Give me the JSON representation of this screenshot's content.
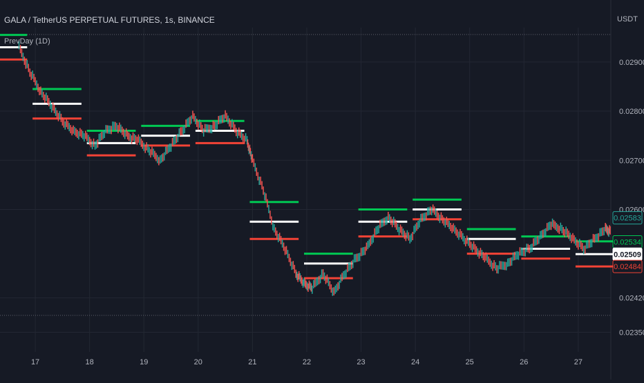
{
  "header": {
    "symbol_title": "GALA / TetherUS PERPETUAL FUTURES, 1s, BINANCE",
    "indicator_label": "PrevDay (1D)",
    "currency": "USDT"
  },
  "colors": {
    "background": "#161a25",
    "grid": "#232733",
    "up": "#26a69a",
    "down": "#ef5350",
    "green_level": "#00c853",
    "white_level": "#ffffff",
    "red_level": "#f44336",
    "text": "#b2b5be"
  },
  "chart_data": {
    "type": "line",
    "title": "GALA / TetherUS PERPETUAL FUTURES, 1s, BINANCE",
    "y_axis": {
      "ticks": [
        "0.02900",
        "0.02800",
        "0.02700",
        "0.02600",
        "0.02420",
        "0.02350"
      ],
      "ylim": [
        0.0231,
        0.0297
      ]
    },
    "x_axis": {
      "ticks": [
        "17",
        "18",
        "19",
        "20",
        "21",
        "22",
        "23",
        "24",
        "25",
        "26",
        "27"
      ]
    },
    "price_labels": [
      {
        "value": "0.02583",
        "color": "#26a69a",
        "style": "outline"
      },
      {
        "value": "0.02534",
        "color": "#00c853",
        "style": "outline"
      },
      {
        "value": "0.02509",
        "color": "#ffffff",
        "style": "filled"
      },
      {
        "value": "0.02484",
        "color": "#f44336",
        "style": "outline"
      }
    ],
    "series": [
      {
        "name": "PrevDay (1D)",
        "levels": [
          {
            "day": 16,
            "high": 0.02955,
            "mid": 0.0293,
            "low": 0.02905
          },
          {
            "day": 17,
            "high": 0.02845,
            "mid": 0.02815,
            "low": 0.02785
          },
          {
            "day": 18,
            "high": 0.0276,
            "mid": 0.02735,
            "low": 0.0271
          },
          {
            "day": 19,
            "high": 0.0277,
            "mid": 0.0275,
            "low": 0.0273
          },
          {
            "day": 20,
            "high": 0.0278,
            "mid": 0.0276,
            "low": 0.02735
          },
          {
            "day": 21,
            "high": 0.02615,
            "mid": 0.02575,
            "low": 0.0254
          },
          {
            "day": 22,
            "high": 0.0251,
            "mid": 0.0249,
            "low": 0.0246
          },
          {
            "day": 23,
            "high": 0.026,
            "mid": 0.02575,
            "low": 0.02545
          },
          {
            "day": 24,
            "high": 0.0262,
            "mid": 0.026,
            "low": 0.0258
          },
          {
            "day": 25,
            "high": 0.0256,
            "mid": 0.0254,
            "low": 0.0251
          },
          {
            "day": 26,
            "high": 0.02545,
            "mid": 0.0252,
            "low": 0.025
          },
          {
            "day": 27,
            "high": 0.02535,
            "mid": 0.02509,
            "low": 0.02484
          }
        ]
      },
      {
        "name": "Price",
        "x": [
          16.7,
          16.9,
          17.1,
          17.3,
          17.5,
          17.7,
          17.9,
          18.1,
          18.3,
          18.5,
          18.7,
          18.9,
          19.1,
          19.3,
          19.5,
          19.7,
          19.9,
          20.1,
          20.3,
          20.5,
          20.7,
          20.9,
          21.0,
          21.2,
          21.4,
          21.6,
          21.8,
          21.95,
          22.1,
          22.3,
          22.5,
          22.7,
          22.9,
          23.1,
          23.3,
          23.5,
          23.7,
          23.9,
          24.1,
          24.3,
          24.5,
          24.7,
          24.9,
          25.1,
          25.3,
          25.5,
          25.7,
          25.9,
          26.1,
          26.3,
          26.5,
          26.7,
          26.9,
          27.1,
          27.3,
          27.5,
          27.6
        ],
        "y": [
          0.0293,
          0.0288,
          0.0284,
          0.0281,
          0.0278,
          0.0276,
          0.0275,
          0.0273,
          0.0276,
          0.0277,
          0.0275,
          0.0274,
          0.0272,
          0.027,
          0.0273,
          0.0276,
          0.0279,
          0.0276,
          0.0277,
          0.0279,
          0.0276,
          0.0274,
          0.027,
          0.0264,
          0.0256,
          0.0252,
          0.0247,
          0.0245,
          0.0244,
          0.0247,
          0.0243,
          0.0247,
          0.025,
          0.0252,
          0.0256,
          0.02585,
          0.0256,
          0.0254,
          0.0258,
          0.026,
          0.0258,
          0.0256,
          0.0254,
          0.0252,
          0.025,
          0.0248,
          0.0249,
          0.0251,
          0.0252,
          0.02545,
          0.0257,
          0.0256,
          0.0254,
          0.0252,
          0.0254,
          0.0256,
          0.02555
        ]
      }
    ],
    "grid": true
  }
}
